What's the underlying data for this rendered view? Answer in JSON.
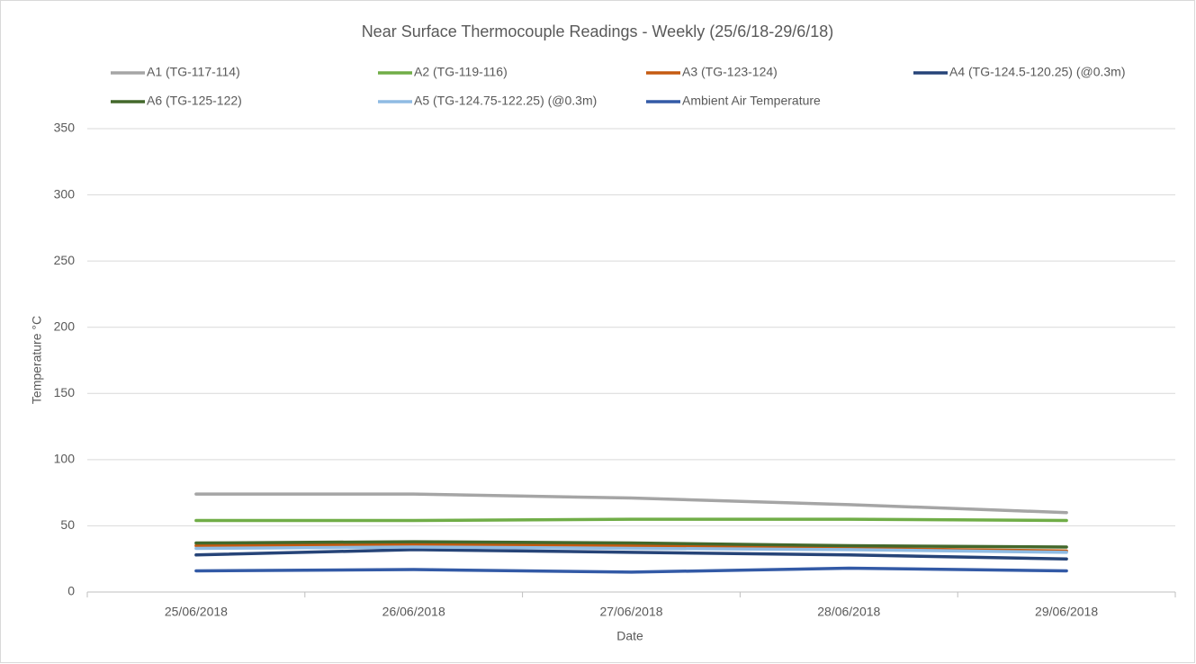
{
  "chart_data": {
    "type": "line",
    "title": "Near Surface Thermocouple Readings - Weekly  (25/6/18-29/6/18)",
    "x_label": "Date",
    "y_label": "Temperature °C",
    "categories": [
      "25/06/2018",
      "26/06/2018",
      "27/06/2018",
      "28/06/2018",
      "29/06/2018"
    ],
    "series": [
      {
        "name": "A1 (TG-117-114)",
        "color": "#a5a5a5",
        "values": [
          74,
          74,
          71,
          66,
          60
        ]
      },
      {
        "name": "A2 (TG-119-116)",
        "color": "#70ad47",
        "values": [
          54,
          54,
          55,
          55,
          54
        ]
      },
      {
        "name": "A3 (TG-123-124)",
        "color": "#c55a11",
        "values": [
          35,
          36,
          35,
          33,
          31
        ]
      },
      {
        "name": "A4 (TG-124.5-120.25) (@0.3m)",
        "color": "#264478",
        "values": [
          28,
          32,
          30,
          28,
          25
        ]
      },
      {
        "name": "A6 (TG-125-122)",
        "color": "#43682b",
        "values": [
          37,
          38,
          37,
          35,
          34
        ]
      },
      {
        "name": "A5 (TG-124.75-122.25) (@0.3m)",
        "color": "#8fbbe3",
        "values": [
          33,
          34,
          33,
          32,
          30
        ]
      },
      {
        "name": "Ambient Air Temperature",
        "color": "#335aa6",
        "values": [
          16,
          17,
          15,
          18,
          16
        ]
      }
    ],
    "ylim": [
      0,
      350
    ],
    "yticks": [
      0,
      50,
      100,
      150,
      200,
      250,
      300,
      350
    ],
    "grid": true,
    "legend": "top"
  }
}
